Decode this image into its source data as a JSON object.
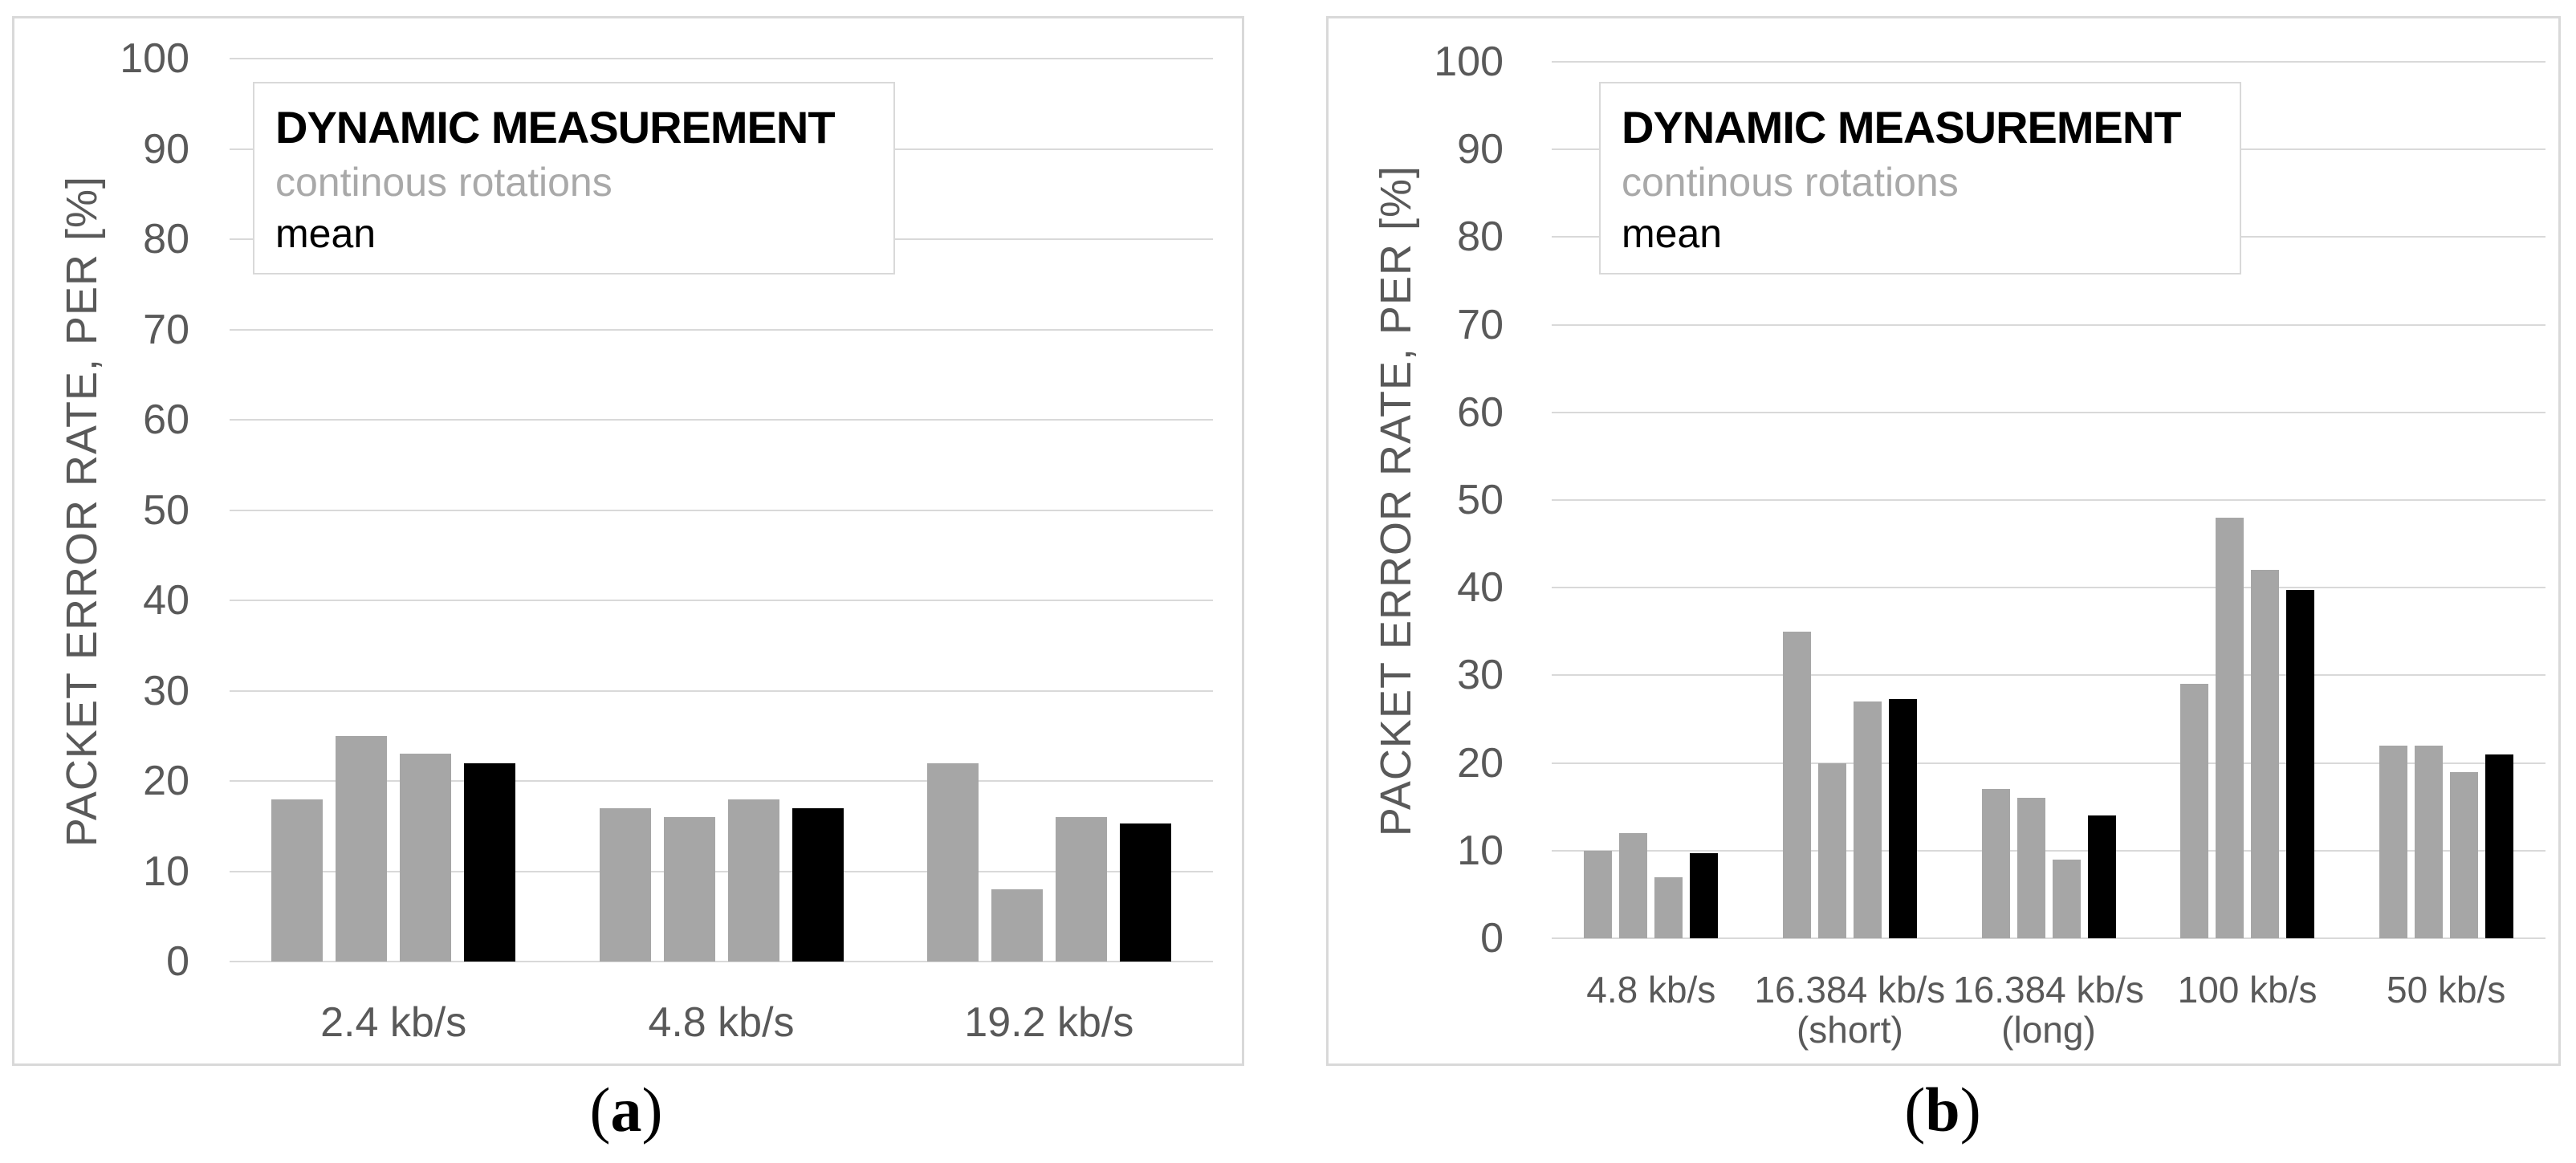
{
  "y_axis_title": "PACKET ERROR RATE, PER [%]",
  "legend": {
    "title": "DYNAMIC MEASUREMENT",
    "series_gray": "continous rotations",
    "series_black": "mean"
  },
  "captions": {
    "paren_open": "(",
    "a_letter": "a",
    "b_letter": "b",
    "paren_close": ")"
  },
  "colors": {
    "bar_gray": "#a6a6a6",
    "bar_black": "#000000",
    "gridline": "#d9d9d9",
    "axis_text": "#595959",
    "panel_border": "#d9d9d9",
    "legend_gray_text": "#a9a9a9"
  },
  "chart_data": [
    {
      "id": "a",
      "type": "bar",
      "title": "",
      "ylabel": "PACKET ERROR RATE, PER [%]",
      "ylim": [
        0,
        100
      ],
      "yticks": [
        0,
        10,
        20,
        30,
        40,
        50,
        60,
        70,
        80,
        90,
        100
      ],
      "grid": true,
      "legend_position": "top-left",
      "legend_entries": [
        "DYNAMIC MEASUREMENT",
        "continous rotations",
        "mean"
      ],
      "categories": [
        "2.4 kb/s",
        "4.8 kb/s",
        "19.2 kb/s"
      ],
      "category_label_lines": [
        [
          "2.4 kb/s"
        ],
        [
          "4.8 kb/s"
        ],
        [
          "19.2 kb/s"
        ]
      ],
      "series": [
        {
          "name": "continous rotations",
          "color_key": "bar_gray",
          "values_per_category": [
            [
              18,
              25,
              23
            ],
            [
              17,
              16,
              18
            ],
            [
              22,
              8,
              16
            ]
          ]
        },
        {
          "name": "mean",
          "color_key": "bar_black",
          "values_per_category": [
            [
              22
            ],
            [
              17
            ],
            [
              15.3
            ]
          ]
        }
      ]
    },
    {
      "id": "b",
      "type": "bar",
      "title": "",
      "ylabel": "PACKET ERROR RATE, PER [%]",
      "ylim": [
        0,
        100
      ],
      "yticks": [
        0,
        10,
        20,
        30,
        40,
        50,
        60,
        70,
        80,
        90,
        100
      ],
      "grid": true,
      "legend_position": "top-left",
      "legend_entries": [
        "DYNAMIC MEASUREMENT",
        "continous rotations",
        "mean"
      ],
      "categories": [
        "4.8 kb/s",
        "16.384 kb/s (short)",
        "16.384 kb/s (long)",
        "100 kb/s",
        "50 kb/s"
      ],
      "category_label_lines": [
        [
          "4.8 kb/s"
        ],
        [
          "16.384 kb/s",
          "(short)"
        ],
        [
          "16.384 kb/s",
          "(long)"
        ],
        [
          "100 kb/s"
        ],
        [
          "50 kb/s"
        ]
      ],
      "series": [
        {
          "name": "continous rotations",
          "color_key": "bar_gray",
          "values_per_category": [
            [
              10,
              12,
              7
            ],
            [
              35,
              20,
              27
            ],
            [
              17,
              16,
              9
            ],
            [
              29,
              48,
              42
            ],
            [
              22,
              22,
              19
            ]
          ]
        },
        {
          "name": "mean",
          "color_key": "bar_black",
          "values_per_category": [
            [
              9.7
            ],
            [
              27.3
            ],
            [
              14
            ],
            [
              39.7
            ],
            [
              21
            ]
          ]
        }
      ]
    }
  ]
}
